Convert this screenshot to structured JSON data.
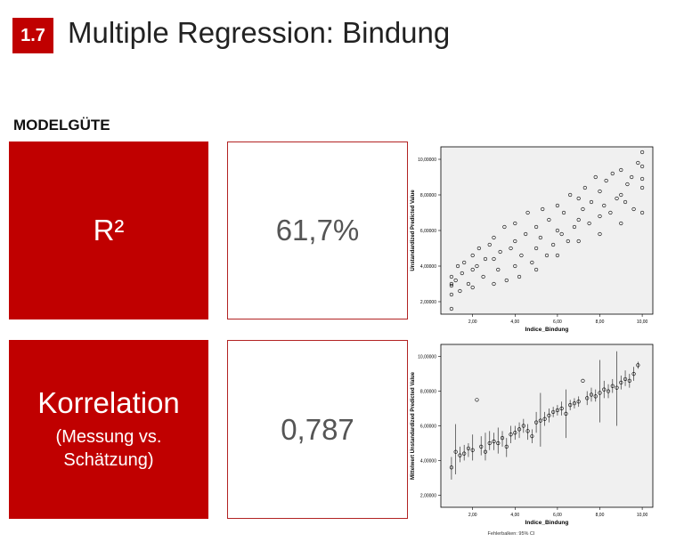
{
  "slide": {
    "number": "1.7",
    "title": "Multiple Regression: Bindung",
    "section_label": "MODELGÜTE"
  },
  "metrics": [
    {
      "label": "R²",
      "sub1": "",
      "sub2": "",
      "value": "61,7%"
    },
    {
      "label": "Korrelation",
      "sub1": "(Messung vs.",
      "sub2": "Schätzung)",
      "value": "0,787"
    }
  ],
  "colors": {
    "accent": "#c00000",
    "plot_bg": "#f0f0f0",
    "marker": "#000000"
  },
  "chart_data": [
    {
      "type": "scatter",
      "xlabel": "Indice_Bindung",
      "ylabel": "Unstandardized Predicted Value",
      "x_ticks": [
        "2,00",
        "4,00",
        "6,00",
        "8,00",
        "10,00"
      ],
      "y_ticks": [
        "2,00000",
        "4,00000",
        "6,00000",
        "8,00000",
        "10,00000"
      ],
      "xlim": [
        0.5,
        10.5
      ],
      "ylim": [
        1.3,
        10.7
      ],
      "points": [
        [
          1,
          1.6
        ],
        [
          1,
          2.4
        ],
        [
          1,
          3.0
        ],
        [
          1,
          3.4
        ],
        [
          1,
          2.9
        ],
        [
          1.2,
          3.2
        ],
        [
          1.3,
          4.0
        ],
        [
          1.4,
          2.6
        ],
        [
          1.5,
          3.6
        ],
        [
          1.6,
          4.2
        ],
        [
          1.8,
          3.0
        ],
        [
          2,
          3.8
        ],
        [
          2,
          4.6
        ],
        [
          2,
          2.8
        ],
        [
          2.2,
          4.0
        ],
        [
          2.3,
          5.0
        ],
        [
          2.5,
          3.4
        ],
        [
          2.6,
          4.4
        ],
        [
          2.8,
          5.2
        ],
        [
          3,
          3.0
        ],
        [
          3,
          4.4
        ],
        [
          3,
          5.6
        ],
        [
          3.2,
          3.8
        ],
        [
          3.3,
          4.8
        ],
        [
          3.5,
          6.2
        ],
        [
          3.6,
          3.2
        ],
        [
          3.8,
          5.0
        ],
        [
          4,
          4.0
        ],
        [
          4,
          5.4
        ],
        [
          4,
          6.4
        ],
        [
          4.2,
          3.4
        ],
        [
          4.3,
          4.6
        ],
        [
          4.5,
          5.8
        ],
        [
          4.6,
          7.0
        ],
        [
          4.8,
          4.2
        ],
        [
          5,
          5.0
        ],
        [
          5,
          6.2
        ],
        [
          5,
          3.8
        ],
        [
          5.2,
          5.6
        ],
        [
          5.3,
          7.2
        ],
        [
          5.5,
          4.6
        ],
        [
          5.6,
          6.6
        ],
        [
          5.8,
          5.2
        ],
        [
          6,
          6.0
        ],
        [
          6,
          7.4
        ],
        [
          6,
          4.6
        ],
        [
          6.2,
          5.8
        ],
        [
          6.3,
          7.0
        ],
        [
          6.5,
          5.4
        ],
        [
          6.6,
          8.0
        ],
        [
          6.8,
          6.2
        ],
        [
          7,
          6.6
        ],
        [
          7,
          7.8
        ],
        [
          7,
          5.4
        ],
        [
          7.2,
          7.2
        ],
        [
          7.3,
          8.4
        ],
        [
          7.5,
          6.4
        ],
        [
          7.6,
          7.6
        ],
        [
          7.8,
          9.0
        ],
        [
          8,
          6.8
        ],
        [
          8,
          8.2
        ],
        [
          8,
          5.8
        ],
        [
          8.2,
          7.4
        ],
        [
          8.3,
          8.8
        ],
        [
          8.5,
          7.0
        ],
        [
          8.6,
          9.2
        ],
        [
          8.8,
          7.8
        ],
        [
          9,
          8.0
        ],
        [
          9,
          9.4
        ],
        [
          9,
          6.4
        ],
        [
          9.2,
          7.6
        ],
        [
          9.3,
          8.6
        ],
        [
          9.5,
          9.0
        ],
        [
          9.6,
          7.2
        ],
        [
          9.8,
          9.8
        ],
        [
          10,
          8.4
        ],
        [
          10,
          9.6
        ],
        [
          10,
          10.4
        ],
        [
          10,
          7.0
        ],
        [
          10,
          8.9
        ]
      ]
    },
    {
      "type": "scatter",
      "xlabel": "Indice_Bindung",
      "ylabel": "Mittelwert Unstandardized Predicted Value",
      "note": "Fehlerbalken: 95% CI",
      "x_ticks": [
        "2,00",
        "4,00",
        "6,00",
        "8,00",
        "10,00"
      ],
      "y_ticks": [
        "2,00000",
        "4,00000",
        "6,00000",
        "8,00000",
        "10,00000"
      ],
      "xlim": [
        0.5,
        10.5
      ],
      "ylim": [
        1.3,
        10.7
      ],
      "points": [
        [
          1.0,
          3.6,
          2.9,
          4.2
        ],
        [
          1.2,
          4.5,
          3.2,
          6.1
        ],
        [
          1.4,
          4.3,
          3.9,
          4.8
        ],
        [
          1.6,
          4.4,
          4.0,
          4.9
        ],
        [
          1.8,
          4.7,
          4.2,
          5.0
        ],
        [
          2.0,
          4.6,
          4.0,
          5.5
        ],
        [
          2.2,
          7.5,
          7.5,
          7.5
        ],
        [
          2.4,
          4.8,
          4.3,
          5.4
        ],
        [
          2.6,
          4.5,
          4.0,
          5.6
        ],
        [
          2.8,
          5.0,
          4.6,
          5.7
        ],
        [
          3.0,
          5.1,
          4.6,
          5.6
        ],
        [
          3.2,
          5.0,
          4.4,
          5.9
        ],
        [
          3.4,
          5.3,
          4.8,
          5.7
        ],
        [
          3.6,
          4.8,
          4.2,
          5.3
        ],
        [
          3.8,
          5.5,
          5.0,
          6.0
        ],
        [
          4.0,
          5.6,
          5.2,
          6.0
        ],
        [
          4.2,
          5.8,
          5.3,
          6.2
        ],
        [
          4.4,
          6.0,
          5.6,
          6.4
        ],
        [
          4.6,
          5.7,
          5.2,
          6.1
        ],
        [
          4.8,
          5.4,
          5.0,
          5.8
        ],
        [
          5.0,
          6.2,
          5.6,
          6.8
        ],
        [
          5.2,
          6.3,
          4.8,
          7.9
        ],
        [
          5.4,
          6.4,
          6.0,
          6.8
        ],
        [
          5.6,
          6.6,
          6.2,
          7.0
        ],
        [
          5.8,
          6.8,
          6.5,
          7.1
        ],
        [
          6.0,
          6.9,
          6.6,
          7.2
        ],
        [
          6.2,
          7.0,
          6.6,
          7.4
        ],
        [
          6.4,
          6.7,
          5.3,
          8.1
        ],
        [
          6.6,
          7.2,
          6.9,
          7.5
        ],
        [
          6.8,
          7.3,
          7.0,
          7.6
        ],
        [
          7.0,
          7.4,
          7.1,
          7.7
        ],
        [
          7.2,
          8.6,
          8.6,
          8.6
        ],
        [
          7.4,
          7.6,
          7.2,
          8.0
        ],
        [
          7.6,
          7.8,
          7.4,
          8.2
        ],
        [
          7.8,
          7.7,
          7.4,
          8.1
        ],
        [
          8.0,
          7.9,
          6.2,
          9.8
        ],
        [
          8.2,
          8.1,
          7.6,
          8.6
        ],
        [
          8.4,
          8.0,
          7.6,
          8.4
        ],
        [
          8.6,
          8.3,
          7.9,
          8.7
        ],
        [
          8.8,
          8.2,
          6.0,
          10.3
        ],
        [
          9.0,
          8.5,
          8.1,
          8.9
        ],
        [
          9.2,
          8.7,
          8.3,
          9.2
        ],
        [
          9.4,
          8.6,
          8.2,
          9.0
        ],
        [
          9.6,
          9.0,
          8.6,
          9.4
        ],
        [
          9.8,
          9.5,
          9.3,
          9.7
        ]
      ]
    }
  ]
}
